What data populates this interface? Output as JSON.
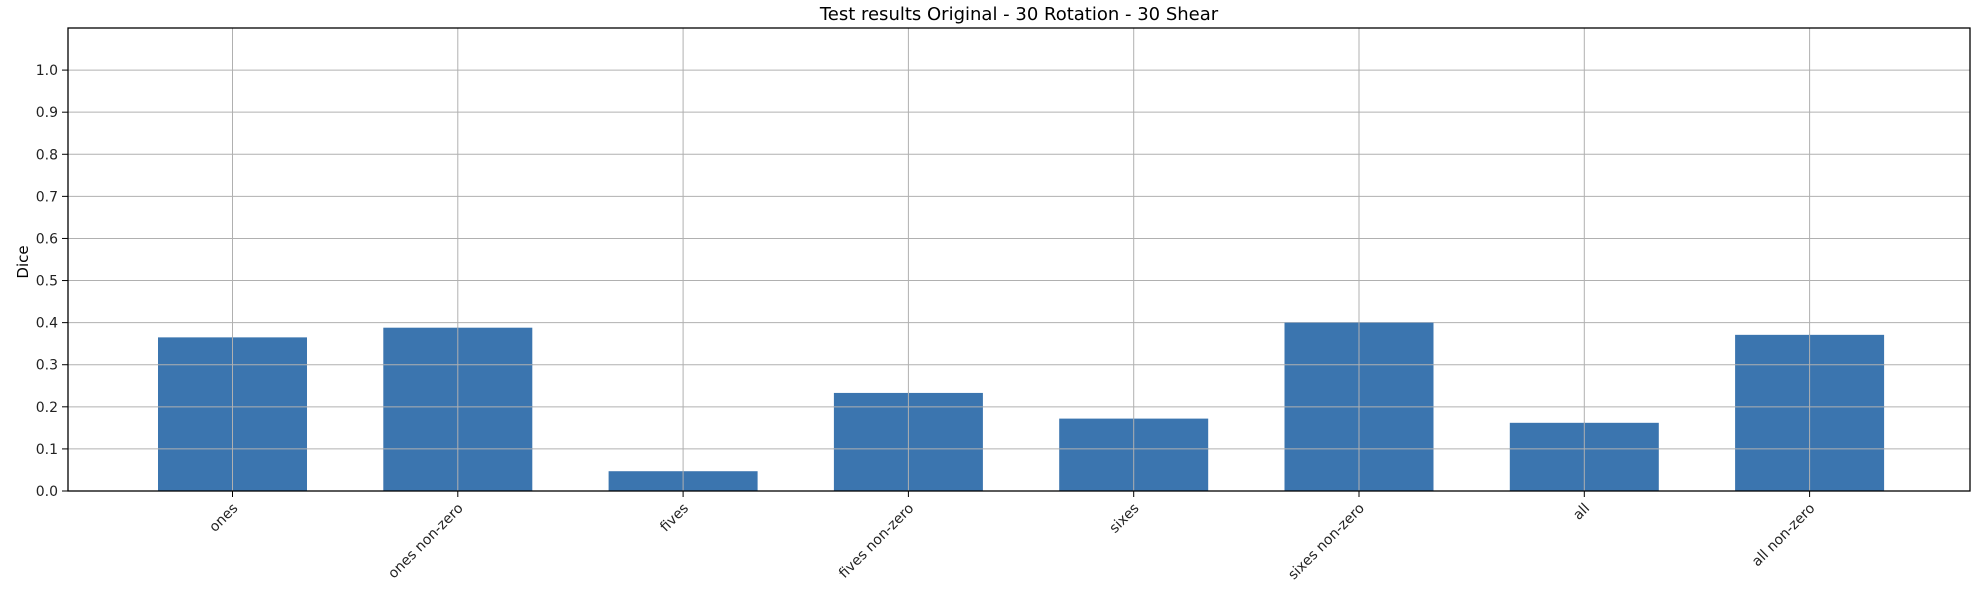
{
  "chart_data": {
    "type": "bar",
    "title": "Test results Original - 30 Rotation - 30 Shear",
    "xlabel": "",
    "ylabel": "Dice",
    "categories": [
      "ones",
      "ones non-zero",
      "fives",
      "fives non-zero",
      "sixes",
      "sixes non-zero",
      "all",
      "all non-zero"
    ],
    "values": [
      0.365,
      0.388,
      0.047,
      0.233,
      0.172,
      0.4,
      0.162,
      0.371
    ],
    "ylim": [
      0.0,
      1.1
    ],
    "yticks": [
      "0.0",
      "0.1",
      "0.2",
      "0.3",
      "0.4",
      "0.5",
      "0.6",
      "0.7",
      "0.8",
      "0.9",
      "1.0"
    ],
    "grid": true,
    "bar_color": "#3b75af",
    "grid_color": "#b0b0b0"
  }
}
